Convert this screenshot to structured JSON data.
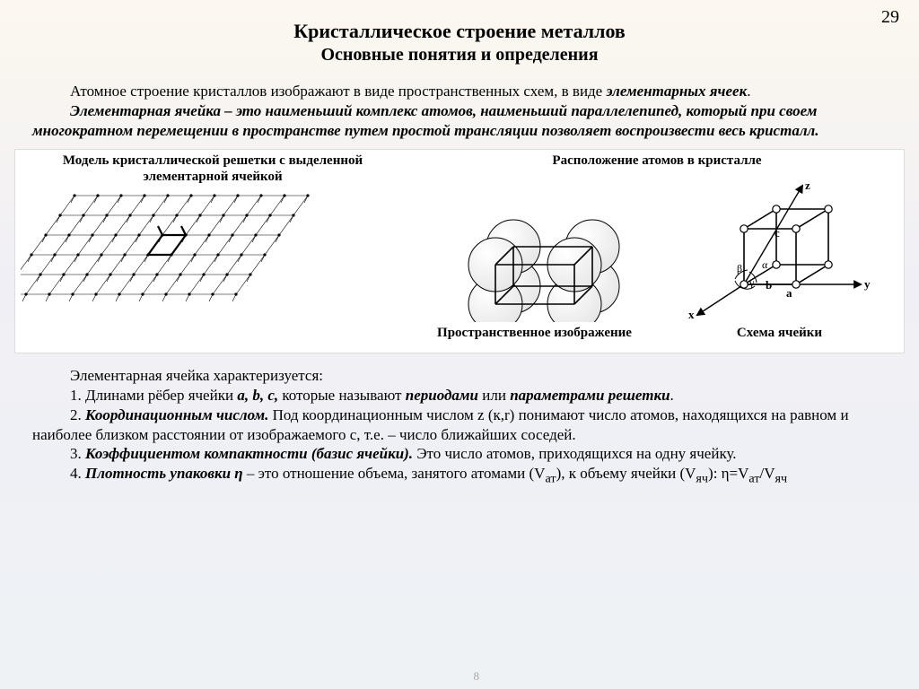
{
  "page_number_top": "29",
  "page_number_bottom": "8",
  "title": "Кристаллическое строение металлов",
  "subtitle": "Основные понятия и определения",
  "para1_a": "Атомное строение кристаллов изображают в виде пространственных схем, в виде ",
  "para1_b": "элементарных ячеек",
  "para1_c": ".",
  "para2_a": "Элементарная ячейка – это наименьший комплекс атомов, наименьший параллелепипед, который при своем многократном перемещении в пространстве путем простой трансляции позволяет воспроизвести весь кристалл.",
  "fig_left_caption": "Модель кристаллической решетки с выделенной элементарной ячейкой",
  "fig_right_top": "Расположение атомов в кристалле",
  "fig_mid_bottom": "Пространственное изображение",
  "fig_right_bottom": "Схема ячейки",
  "axis_x": "x",
  "axis_y": "y",
  "axis_z": "z",
  "param_a": "a",
  "param_b": "b",
  "param_c": "c",
  "angle_alpha": "α",
  "angle_beta": "β",
  "angle_gamma": "γ",
  "char_intro": "Элементарная ячейка характеризуется:",
  "char1_a": "1. Длинами рёбер ячейки ",
  "char1_b": "a, b, c,",
  "char1_c": " которые называют ",
  "char1_d": "периодами",
  "char1_e": " или ",
  "char1_f": "параметрами решетки",
  "char1_g": ".",
  "char2_a": "2. ",
  "char2_b": "Координационным числом.",
  "char2_c": " Под координационным числом z (к,r) понимают число атомов, находящихся на равном и наиболее близком расстоянии от изображаемого с, т.е. – число ближайших соседей.",
  "char3_a": "3. ",
  "char3_b": "Коэффициентом компактности (базис ячейки).",
  "char3_c": " Это число атомов, приходящихся на одну ячейку.",
  "char4_a": "4. ",
  "char4_b": "Плотность упаковки η",
  "char4_c": " – это отношение объема, занятого атомами (V",
  "char4_d": "ат",
  "char4_e": "), к объему ячейки (V",
  "char4_f": "яч",
  "char4_g": "): η=V",
  "char4_h": "ат",
  "char4_i": "/V",
  "char4_j": "яч",
  "diagram": {
    "sphere_fill": "#e8e8e8",
    "sphere_highlight": "#ffffff",
    "stroke": "#000000",
    "stroke_w": 1.6,
    "lattice_stroke_w": 0.6
  }
}
